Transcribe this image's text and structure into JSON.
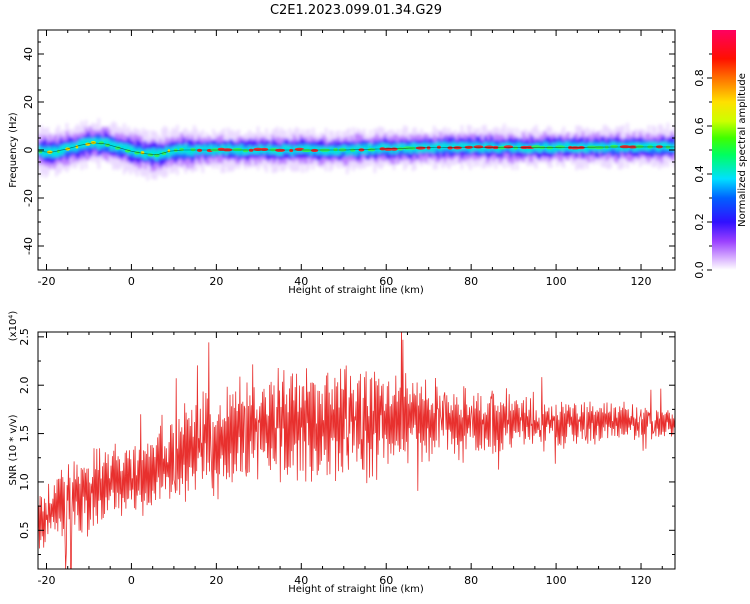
{
  "title": "C2E1.2023.099.01.34.G29",
  "colors": {
    "snr_line": "#e8302e",
    "spectral_core": "#e83030",
    "background": "#ffffff"
  },
  "chart_data": [
    {
      "type": "heatmap",
      "xlabel": "Height of straight line (km)",
      "ylabel": "Frequency (Hz)",
      "xlim": [
        -22,
        128
      ],
      "ylim": [
        -50,
        50
      ],
      "xticks": [
        -20,
        0,
        20,
        40,
        60,
        80,
        100,
        120
      ],
      "yticks": [
        -40,
        -20,
        0,
        20,
        40
      ],
      "grid": false,
      "centerline": {
        "x": [
          -22,
          -19,
          -15,
          -12,
          -9,
          -6,
          -3,
          0,
          3,
          6,
          9,
          12,
          20,
          30,
          40,
          50,
          60,
          70,
          80,
          90,
          100,
          110,
          120,
          128
        ],
        "y": [
          -0.5,
          -1,
          0.5,
          2,
          3,
          2.5,
          1,
          -0.5,
          -1.5,
          -2,
          -0.5,
          0,
          0,
          0,
          0,
          0,
          0.5,
          1,
          1.2,
          1,
          1,
          1.2,
          1.3,
          1.3
        ]
      },
      "colorbar": {
        "label": "Normalized spectral amplitude",
        "range": [
          0,
          1
        ],
        "ticks": [
          0.0,
          0.2,
          0.4,
          0.6,
          0.8
        ],
        "tick_labels": [
          "0.0",
          "0.2",
          "0.4",
          "0.6",
          "0.8"
        ]
      }
    },
    {
      "type": "line",
      "xlabel": "Height of straight line (km)",
      "ylabel": "SNR (10 * v/v)",
      "scale_label": "(x10⁴)",
      "xlim": [
        -22,
        128
      ],
      "ylim": [
        0.1,
        2.55
      ],
      "xticks": [
        -20,
        0,
        20,
        40,
        60,
        80,
        100,
        120
      ],
      "yticks": [
        0.5,
        1.0,
        1.5,
        2.0,
        2.5
      ],
      "ytick_labels": [
        "0.5",
        "1.0",
        "1.5",
        "2.0",
        "2.5"
      ],
      "grid": false,
      "envelope": {
        "x": [
          -22,
          -17,
          -12,
          -7,
          -2,
          3,
          8,
          13,
          18,
          23,
          28,
          33,
          38,
          43,
          48,
          53,
          58,
          63,
          68,
          73,
          78,
          83,
          88,
          93,
          98,
          103,
          108,
          113,
          118,
          123,
          128
        ],
        "mean": [
          0.6,
          0.75,
          0.85,
          0.95,
          1.0,
          1.1,
          1.2,
          1.3,
          1.4,
          1.5,
          1.55,
          1.6,
          1.6,
          1.62,
          1.65,
          1.65,
          1.65,
          1.65,
          1.65,
          1.62,
          1.62,
          1.62,
          1.62,
          1.62,
          1.62,
          1.62,
          1.62,
          1.62,
          1.62,
          1.62,
          1.62
        ],
        "amplitude": [
          0.3,
          0.35,
          0.4,
          0.35,
          0.35,
          0.4,
          0.45,
          0.45,
          0.5,
          0.55,
          0.55,
          0.55,
          0.55,
          0.55,
          0.55,
          0.55,
          0.5,
          0.45,
          0.4,
          0.35,
          0.33,
          0.3,
          0.28,
          0.26,
          0.24,
          0.22,
          0.2,
          0.18,
          0.16,
          0.15,
          0.15
        ]
      },
      "sample_count": 900,
      "series": [
        {
          "color": "#e8302e"
        }
      ]
    }
  ]
}
